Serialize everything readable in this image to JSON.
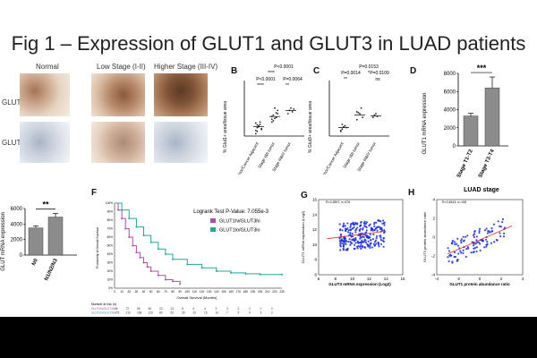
{
  "title": "Fig 1 – Expression of GLUT1 and GLUT3 in LUAD patients",
  "panel_a": {
    "col_labels": [
      "Normal",
      "Low Stage (I-II)",
      "Higher Stage (III-IV)"
    ],
    "row_labels": [
      "GLUT1",
      "GLUT3"
    ]
  },
  "panel_b": {
    "letter": "B",
    "ylabel": "% Glut1+ area/tissue area",
    "categories": [
      "Tumor/Cancer Adjacent",
      "Stage I&II tumor",
      "Stage III&IV tumor"
    ],
    "pvals": [
      "P<0.0001",
      "****",
      "P<0.0001",
      "P=0.0064",
      "****",
      "**"
    ]
  },
  "panel_c": {
    "letter": "C",
    "ylabel": "% Glut3+ area/tissue area",
    "categories": [
      "Tumor/Cancer Adjacent",
      "Stage I&II tumor",
      "Stage III&IV tumor"
    ],
    "pvals": [
      "P=0.0153",
      "P=0.0014",
      "P=0.0109",
      "*",
      "**",
      "ns"
    ]
  },
  "panel_d": {
    "letter": "D",
    "ylabel": "GLUT1 mRNA expression",
    "xlabel": "LUAD stage",
    "sig": "***",
    "categories": [
      "Stage T1-T2",
      "Stage T3-T4"
    ]
  },
  "panel_e": {
    "ylabel": "GLUT mRNA expression",
    "sig": "**",
    "categories": [
      "N0",
      "N1/N2/N3"
    ]
  },
  "panel_f": {
    "letter": "F",
    "test": "Logrank Test P-Value: 7.055e-3",
    "legend": [
      "GLUT1hi/GLUT3hi",
      "GLUT1lo/GLUT3lo"
    ],
    "xlabel": "Overall Survival (Months)",
    "ylabel": "Probability of Overall Survival",
    "risk_label": "Number at risk (n)",
    "risk_row1": [
      "GLUT1hi/GLUT3hi",
      "96",
      "72",
      "55",
      "36",
      "22",
      "13",
      "8",
      "6",
      "4",
      "3",
      "3",
      "2",
      "2",
      "1",
      "0"
    ],
    "risk_row2": [
      "GLUT1lo/GLUT3lo",
      "275",
      "210",
      "168",
      "120",
      "80",
      "52",
      "35",
      "22",
      "15",
      "10",
      "7",
      "5",
      "4",
      "3",
      "2"
    ]
  },
  "panel_g": {
    "letter": "G",
    "xlabel": "GLUT3 mRNA expression (Log2)",
    "ylabel": "GLUT1 mRNA expression (Log2)",
    "stats": "R=0.2897; n=476"
  },
  "panel_h": {
    "letter": "H",
    "xlabel": "GLUT1 protein abundance ratio",
    "ylabel": "GLUT3 protein abundance ratio",
    "stats": "R=0.4543; n=108"
  },
  "colors": {
    "pink": "#b04fa7",
    "teal": "#22a99a",
    "blue": "#1a2fd6",
    "bar": "#8c8c8c"
  },
  "chart_data": [
    {
      "type": "scatter",
      "panel": "B",
      "categories": [
        "Tumor/Cancer Adjacent",
        "Stage I&II tumor",
        "Stage III&IV tumor"
      ],
      "ylim": [
        0,
        100
      ],
      "means": [
        20,
        42,
        55
      ],
      "series": [
        {
          "values": [
            [
              5,
              18,
              22,
              25,
              14,
              28,
              10,
              20,
              30,
              16,
              12,
              24
            ],
            [
              30,
              45,
              38,
              50,
              55,
              42,
              33,
              60,
              40,
              48,
              36
            ],
            [
              48,
              55,
              60,
              52,
              58
            ]
          ]
        }
      ]
    },
    {
      "type": "scatter",
      "panel": "C",
      "categories": [
        "Tumor/Cancer Adjacent",
        "Stage I&II tumor",
        "Stage III&IV tumor"
      ],
      "ylim": [
        0,
        100
      ],
      "means": [
        18,
        45,
        43
      ],
      "series": [
        {
          "values": [
            [
              10,
              15,
              20,
              22,
              18,
              12,
              25
            ],
            [
              35,
              50,
              48,
              60,
              40,
              52
            ],
            [
              40,
              45,
              48,
              42
            ]
          ]
        }
      ]
    },
    {
      "type": "bar",
      "panel": "D",
      "categories": [
        "Stage T1-T2",
        "Stage T3-T4"
      ],
      "values": [
        3300,
        6400
      ],
      "errors": [
        300,
        1200
      ],
      "ylim": [
        0,
        8000
      ],
      "yticks": [
        0,
        2000,
        4000,
        6000,
        8000
      ]
    },
    {
      "type": "bar",
      "panel": "E",
      "categories": [
        "N0",
        "N1/N2/N3"
      ],
      "values": [
        3500,
        4900
      ],
      "errors": [
        250,
        450
      ],
      "ylim": [
        0,
        6000
      ],
      "yticks": [
        0,
        2000,
        4000,
        6000
      ]
    },
    {
      "type": "line",
      "panel": "F",
      "ylim": [
        0,
        100
      ],
      "xlim": [
        0,
        230
      ],
      "xticks": [
        "0",
        "10",
        "20",
        "30",
        "40",
        "50",
        "60",
        "70",
        "80",
        "90",
        "100",
        "110",
        "120",
        "130",
        "140",
        "150",
        "160",
        "170",
        "180",
        "190",
        "200",
        "210",
        "220",
        "230"
      ],
      "yticks": [
        "0%",
        "10%",
        "20%",
        "30%",
        "40%",
        "50%",
        "60%",
        "70%",
        "80%",
        "90%",
        "100%"
      ],
      "series": [
        {
          "name": "GLUT1hi/GLUT3hi",
          "x": [
            0,
            5,
            10,
            15,
            20,
            25,
            30,
            35,
            40,
            45,
            50,
            60,
            70,
            80,
            90
          ],
          "y": [
            100,
            92,
            82,
            70,
            60,
            50,
            42,
            36,
            30,
            25,
            20,
            15,
            10,
            8,
            5
          ]
        },
        {
          "name": "GLUT1lo/GLUT3lo",
          "x": [
            0,
            10,
            20,
            30,
            40,
            50,
            60,
            70,
            80,
            100,
            120,
            140,
            160,
            180,
            200,
            230
          ],
          "y": [
            100,
            92,
            82,
            72,
            62,
            54,
            46,
            40,
            34,
            28,
            24,
            20,
            18,
            17,
            16,
            16
          ]
        }
      ]
    },
    {
      "type": "scatter",
      "panel": "G",
      "xlim": [
        6,
        16
      ],
      "ylim": [
        6,
        16
      ],
      "xticks": [
        6,
        8,
        10,
        12,
        14,
        16
      ],
      "yticks": [
        6,
        8,
        10,
        12,
        14,
        16
      ],
      "fit": [
        [
          7,
          10.8
        ],
        [
          14,
          11.8
        ]
      ]
    },
    {
      "type": "scatter",
      "panel": "H",
      "xlim": [
        -4,
        4
      ],
      "ylim": [
        -4,
        4
      ],
      "xticks": [
        -4,
        -2,
        0,
        2,
        4
      ],
      "yticks": [
        -4,
        -2,
        0,
        2,
        4
      ],
      "fit": [
        [
          -3,
          -1.8
        ],
        [
          3,
          1.2
        ]
      ]
    }
  ]
}
